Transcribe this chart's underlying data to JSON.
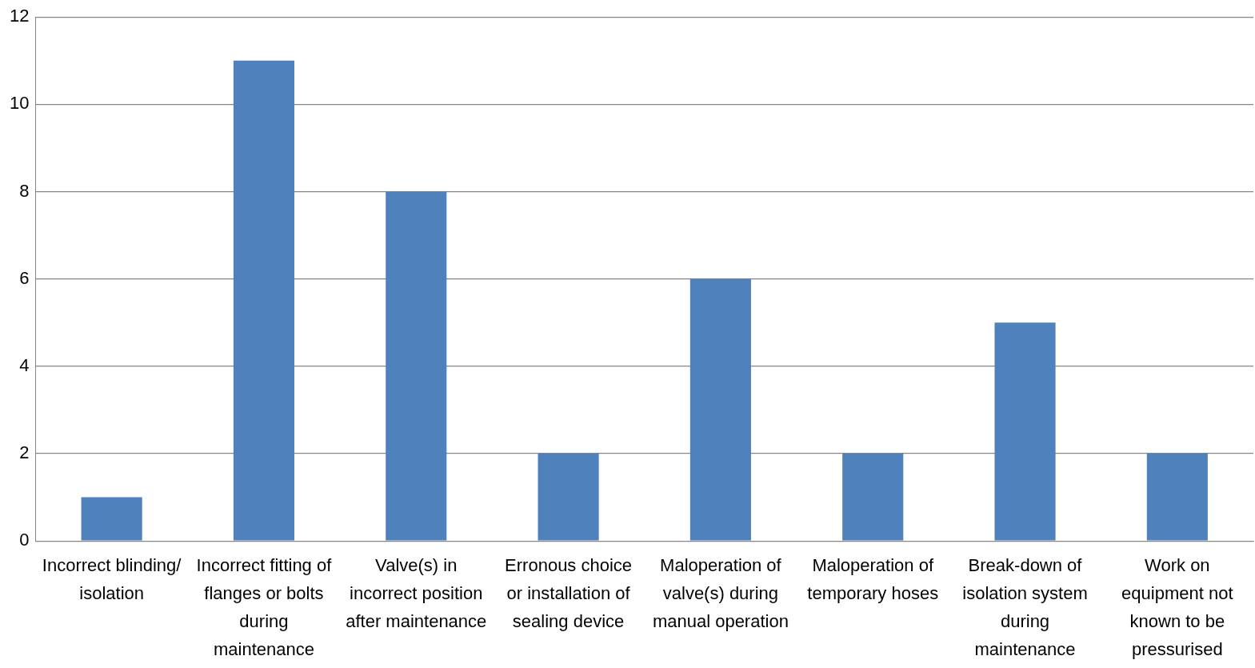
{
  "chart_data": {
    "type": "bar",
    "categories": [
      "Incorrect blinding/ isolation",
      "Incorrect fitting of flanges or bolts during maintenance",
      "Valve(s) in incorrect position after maintenance",
      "Erronous choice or installation of sealing device",
      "Maloperation of valve(s) during manual operation",
      "Maloperation of temporary hoses",
      "Break-down of isolation system during maintenance",
      "Work on equipment not known to be pressurised"
    ],
    "values": [
      1,
      11,
      8,
      2,
      6,
      2,
      5,
      2
    ],
    "color": "#4f81bd",
    "ylim": [
      0,
      12
    ],
    "yticks": [
      0,
      2,
      4,
      6,
      8,
      10,
      12
    ],
    "grid": "y",
    "legend": false
  }
}
